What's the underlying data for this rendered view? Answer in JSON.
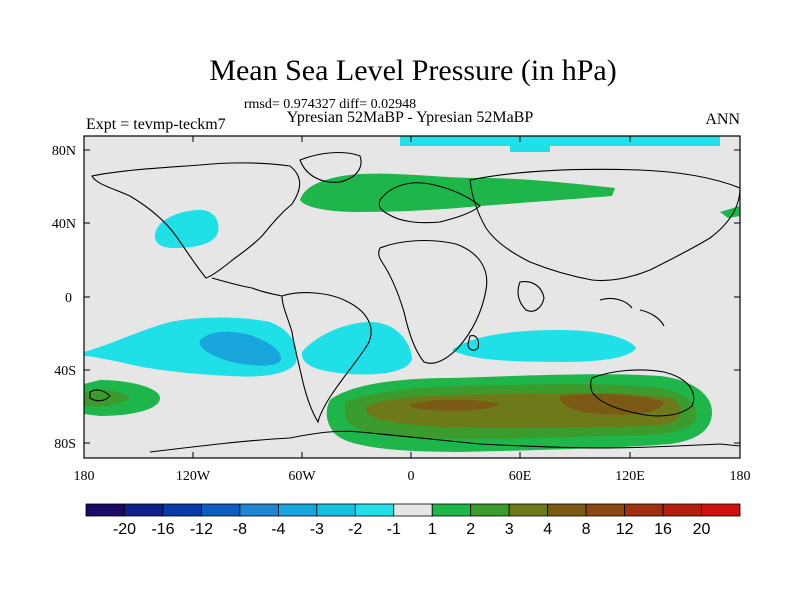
{
  "title": "Mean Sea Level Pressure (in hPa)",
  "stats_line": "rmsd= 0.974327 diff= 0.02948",
  "subtitle": "Ypresian  52MaBP - Ypresian  52MaBP",
  "left_label": "Expt = tevmp-teckm7",
  "right_label": "ANN",
  "x_ticks": [
    "180",
    "120W",
    "60W",
    "0",
    "60E",
    "120E",
    "180"
  ],
  "y_ticks": [
    "80N",
    "40N",
    "0",
    "40S",
    "80S"
  ],
  "colorbar": {
    "labels": [
      "-20",
      "-16",
      "-12",
      "-8",
      "-4",
      "-3",
      "-2",
      "-1",
      "1",
      "2",
      "3",
      "4",
      "8",
      "12",
      "16",
      "20"
    ],
    "colors": [
      "#1a0a66",
      "#0f1f8c",
      "#0a3aa6",
      "#0f5cbf",
      "#1f86d2",
      "#19a6dc",
      "#14c1df",
      "#1ee0e6",
      "#e6e6e6",
      "#1eb64a",
      "#3c9b2d",
      "#6e7a19",
      "#7a5a14",
      "#8c4712",
      "#a0300f",
      "#b41e0f",
      "#d20f0f"
    ]
  },
  "chart_data": {
    "type": "map",
    "field": "Mean Sea Level Pressure difference (hPa)",
    "projection": "cylindrical equidistant",
    "lon_range": [
      -180,
      180
    ],
    "lat_range": [
      -90,
      90
    ],
    "contour_levels": [
      -20,
      -16,
      -12,
      -8,
      -4,
      -3,
      -2,
      -1,
      1,
      2,
      3,
      4,
      8,
      12,
      16,
      20
    ],
    "background_level_range": [
      -1,
      1
    ]
  }
}
